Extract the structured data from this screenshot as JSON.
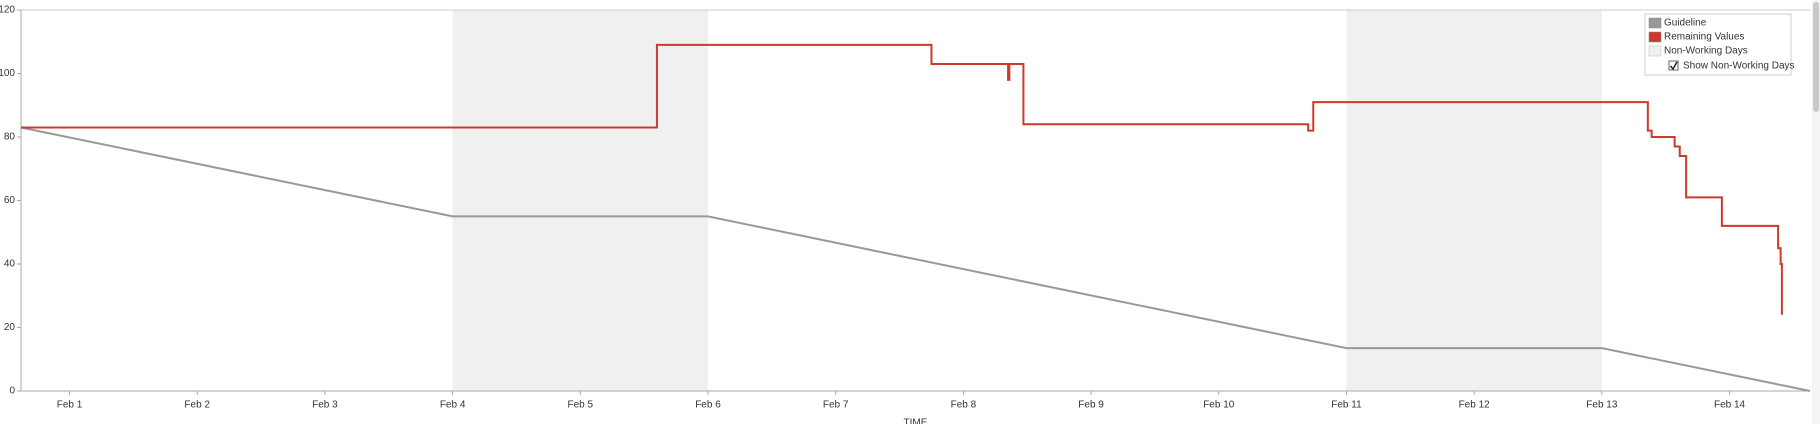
{
  "chart_data": {
    "type": "line",
    "x_label": "TIME",
    "xlim": [
      0.62,
      14.63
    ],
    "ylim": [
      0,
      120
    ],
    "yticks": [
      0,
      20,
      40,
      60,
      80,
      100,
      120
    ],
    "xticks": [
      {
        "value": 1,
        "label": "Feb 1"
      },
      {
        "value": 2,
        "label": "Feb 2"
      },
      {
        "value": 3,
        "label": "Feb 3"
      },
      {
        "value": 4,
        "label": "Feb 4"
      },
      {
        "value": 5,
        "label": "Feb 5"
      },
      {
        "value": 6,
        "label": "Feb 6"
      },
      {
        "value": 7,
        "label": "Feb 7"
      },
      {
        "value": 8,
        "label": "Feb 8"
      },
      {
        "value": 9,
        "label": "Feb 9"
      },
      {
        "value": 10,
        "label": "Feb 10"
      },
      {
        "value": 11,
        "label": "Feb 11"
      },
      {
        "value": 12,
        "label": "Feb 12"
      },
      {
        "value": 13,
        "label": "Feb 13"
      },
      {
        "value": 14,
        "label": "Feb 14"
      }
    ],
    "non_working_days": {
      "label": "Non-Working Days",
      "color": "#f0f0f0",
      "ranges": [
        [
          4,
          6
        ],
        [
          11,
          13
        ]
      ]
    },
    "toggle_label": "Show Non-Working Days",
    "legend": "top-right",
    "series": [
      {
        "name": "Guideline",
        "color": "#999999",
        "x": [
          0.62,
          4,
          6,
          11,
          13,
          14.63
        ],
        "values": [
          83,
          55,
          55,
          13.5,
          13.5,
          0
        ]
      },
      {
        "name": "Remaining Values",
        "color": "#cc3a2e",
        "x": [
          0.62,
          5.6,
          5.6,
          7.75,
          7.75,
          8.35,
          8.35,
          8.36,
          8.36,
          8.47,
          8.47,
          10.7,
          10.7,
          10.74,
          10.74,
          13.36,
          13.36,
          13.39,
          13.39,
          13.57,
          13.57,
          13.61,
          13.61,
          13.66,
          13.66,
          13.94,
          13.94,
          14.38,
          14.38,
          14.4,
          14.4,
          14.41,
          14.41
        ],
        "values": [
          83,
          83,
          109,
          109,
          103,
          103,
          98,
          98,
          103,
          103,
          84,
          84,
          82,
          82,
          91,
          91,
          82,
          82,
          80,
          80,
          77,
          77,
          74,
          74,
          61,
          61,
          52,
          52,
          45,
          45,
          40,
          40,
          24
        ]
      }
    ]
  }
}
